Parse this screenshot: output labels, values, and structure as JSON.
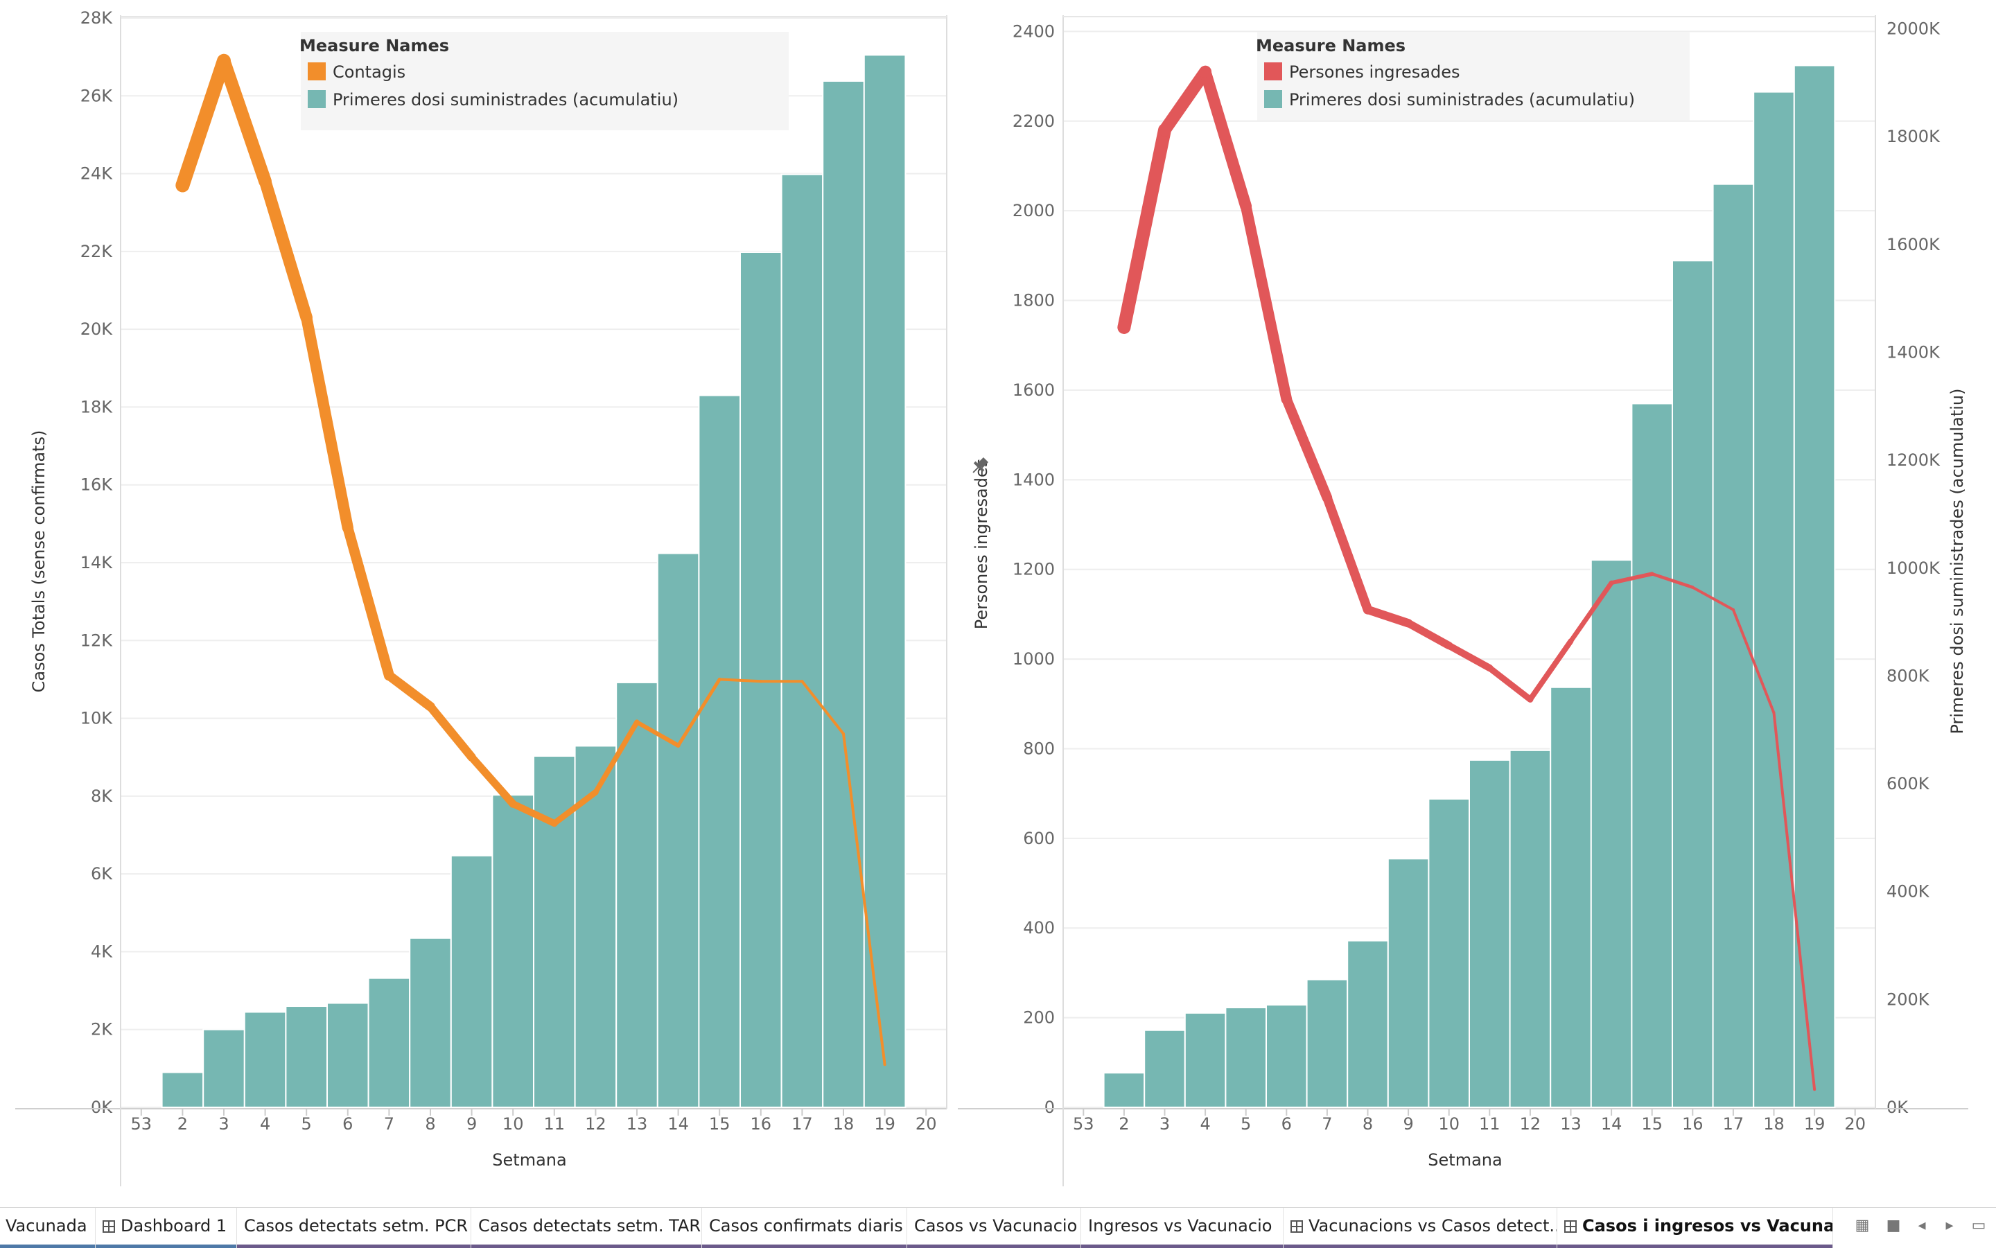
{
  "chart_data": [
    {
      "type": "bar+line",
      "xlabel": "Setmana",
      "ylabel": "Casos Totals (sense confirmats)",
      "categories": [
        "53",
        "2",
        "3",
        "4",
        "5",
        "6",
        "7",
        "8",
        "9",
        "10",
        "11",
        "12",
        "13",
        "14",
        "15",
        "16",
        "17",
        "18",
        "19",
        "20"
      ],
      "y_ticks": [
        "0K",
        "2K",
        "4K",
        "6K",
        "8K",
        "10K",
        "12K",
        "14K",
        "16K",
        "18K",
        "20K",
        "22K",
        "24K",
        "26K",
        "28K"
      ],
      "ylim": [
        0,
        28000
      ],
      "legend": {
        "title": "Measure Names",
        "placement": "top-center",
        "items": [
          {
            "label": "Contagis",
            "color": "#f28e2b"
          },
          {
            "label": "Primeres dosi suministrades (acumulatiu)",
            "color": "#76b7b2"
          }
        ]
      },
      "bars": {
        "name": "Primeres dosi suministrades (acumulatiu)",
        "color": "#76b7b2",
        "values": [
          null,
          900,
          2000,
          2450,
          2600,
          2680,
          3320,
          4350,
          6470,
          8030,
          9030,
          9290,
          10920,
          14240,
          18300,
          21980,
          23980,
          26380,
          27050,
          null
        ]
      },
      "line": {
        "name": "Contagis",
        "color": "#f28e2b",
        "values": [
          null,
          23700,
          26900,
          23800,
          20300,
          14900,
          11100,
          10300,
          9000,
          7800,
          7300,
          8100,
          9900,
          9300,
          11000,
          10950,
          10950,
          9600,
          1100,
          null
        ]
      }
    },
    {
      "type": "bar+line",
      "xlabel": "Setmana",
      "ylabel": "Persones ingresades",
      "y2label": "Primeres dosi suministrades (acumulatiu)",
      "categories": [
        "53",
        "2",
        "3",
        "4",
        "5",
        "6",
        "7",
        "8",
        "9",
        "10",
        "11",
        "12",
        "13",
        "14",
        "15",
        "16",
        "17",
        "18",
        "19",
        "20"
      ],
      "y_ticks": [
        "0",
        "200",
        "400",
        "600",
        "800",
        "1000",
        "1200",
        "1400",
        "1600",
        "1800",
        "2000",
        "2200",
        "2400"
      ],
      "ylim": [
        0,
        2430
      ],
      "y2_ticks": [
        "0K",
        "200K",
        "400K",
        "600K",
        "800K",
        "1000K",
        "1200K",
        "1400K",
        "1600K",
        "1800K",
        "2000K"
      ],
      "y2lim": [
        0,
        2020000
      ],
      "legend": {
        "title": "Measure Names",
        "placement": "top-center",
        "items": [
          {
            "label": "Persones ingresades",
            "color": "#e15759"
          },
          {
            "label": "Primeres dosi suministrades (acumulatiu)",
            "color": "#76b7b2"
          }
        ]
      },
      "bars": {
        "name": "Primeres dosi suministrades (acumulatiu)",
        "color": "#76b7b2",
        "values": [
          null,
          64000,
          143000,
          175000,
          185000,
          190000,
          237000,
          309000,
          461000,
          572000,
          644000,
          662000,
          779000,
          1015000,
          1305000,
          1570000,
          1712000,
          1883000,
          1932000,
          null
        ]
      },
      "line": {
        "name": "Persones ingresades",
        "color": "#e15759",
        "values": [
          null,
          1740,
          2180,
          2310,
          2010,
          1580,
          1360,
          1110,
          1080,
          1030,
          980,
          910,
          1040,
          1170,
          1190,
          1160,
          1110,
          880,
          40,
          null
        ]
      }
    }
  ],
  "pin_icon": "pin-icon",
  "tabs": [
    {
      "label": "Vacunada",
      "icon": "",
      "color": "#4e79a7",
      "active": false
    },
    {
      "label": "Dashboard 1",
      "icon": "dashboard-grid-icon",
      "color": "#4e79a7",
      "active": false
    },
    {
      "label": "Casos detectats setm. PCR",
      "icon": "",
      "color": "#6b5a8a",
      "active": false
    },
    {
      "label": "Casos detectats setm. TAR",
      "icon": "",
      "color": "#6b5a8a",
      "active": false
    },
    {
      "label": "Casos confirmats diaris",
      "icon": "",
      "color": "#6b5a8a",
      "active": false
    },
    {
      "label": "Casos vs Vacunacio",
      "icon": "",
      "color": "#6b5a8a",
      "active": false
    },
    {
      "label": "Ingresos vs Vacunacio",
      "icon": "",
      "color": "#6b5a8a",
      "active": false
    },
    {
      "label": "Vacunacions vs Casos detect...",
      "icon": "dashboard-grid-icon",
      "color": "#6b5a8a",
      "active": false
    },
    {
      "label": "Casos i ingresos vs Vacunació",
      "icon": "dashboard-grid-icon",
      "color": "#6b5a8a",
      "active": true
    }
  ],
  "nav_icons": [
    "filmstrip-icon",
    "single-sheet-icon",
    "prev-sheet-icon",
    "next-sheet-icon",
    "presentation-mode-icon"
  ]
}
